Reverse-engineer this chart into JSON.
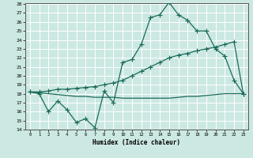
{
  "xlabel": "Humidex (Indice chaleur)",
  "bg_color": "#cce8e2",
  "line_color": "#1a6b5a",
  "grid_color": "#b0d8d0",
  "ylim": [
    14,
    28
  ],
  "xlim": [
    -0.5,
    23.5
  ],
  "yticks": [
    14,
    15,
    16,
    17,
    18,
    19,
    20,
    21,
    22,
    23,
    24,
    25,
    26,
    27,
    28
  ],
  "xticks": [
    0,
    1,
    2,
    3,
    4,
    5,
    6,
    7,
    8,
    9,
    10,
    11,
    12,
    13,
    14,
    15,
    16,
    17,
    18,
    19,
    20,
    21,
    22,
    23
  ],
  "line1_x": [
    0,
    1,
    2,
    3,
    4,
    5,
    6,
    7,
    8,
    9,
    10,
    11,
    12,
    13,
    14,
    15,
    16,
    17,
    18,
    19,
    20,
    21,
    22,
    23
  ],
  "line1_y": [
    18.2,
    18.0,
    16.0,
    17.2,
    16.2,
    14.8,
    15.2,
    14.2,
    18.3,
    17.0,
    21.5,
    21.8,
    23.5,
    26.5,
    26.8,
    28.2,
    26.8,
    26.2,
    25.0,
    25.0,
    23.0,
    22.2,
    19.5,
    18.0
  ],
  "line2_x": [
    0,
    1,
    2,
    3,
    4,
    5,
    6,
    7,
    8,
    9,
    10,
    11,
    12,
    13,
    14,
    15,
    16,
    17,
    18,
    19,
    20,
    21,
    22,
    23
  ],
  "line2_y": [
    18.2,
    18.2,
    18.3,
    18.5,
    18.5,
    18.6,
    18.7,
    18.8,
    19.0,
    19.2,
    19.5,
    20.0,
    20.5,
    21.0,
    21.5,
    22.0,
    22.3,
    22.5,
    22.8,
    23.0,
    23.2,
    23.5,
    23.8,
    18.0
  ],
  "line3_x": [
    0,
    1,
    2,
    3,
    4,
    5,
    6,
    7,
    8,
    9,
    10,
    11,
    12,
    13,
    14,
    15,
    16,
    17,
    18,
    19,
    20,
    21,
    22,
    23
  ],
  "line3_y": [
    18.2,
    18.1,
    18.0,
    17.9,
    17.8,
    17.7,
    17.7,
    17.6,
    17.6,
    17.6,
    17.5,
    17.5,
    17.5,
    17.5,
    17.5,
    17.5,
    17.6,
    17.7,
    17.7,
    17.8,
    17.9,
    18.0,
    18.0,
    18.0
  ]
}
